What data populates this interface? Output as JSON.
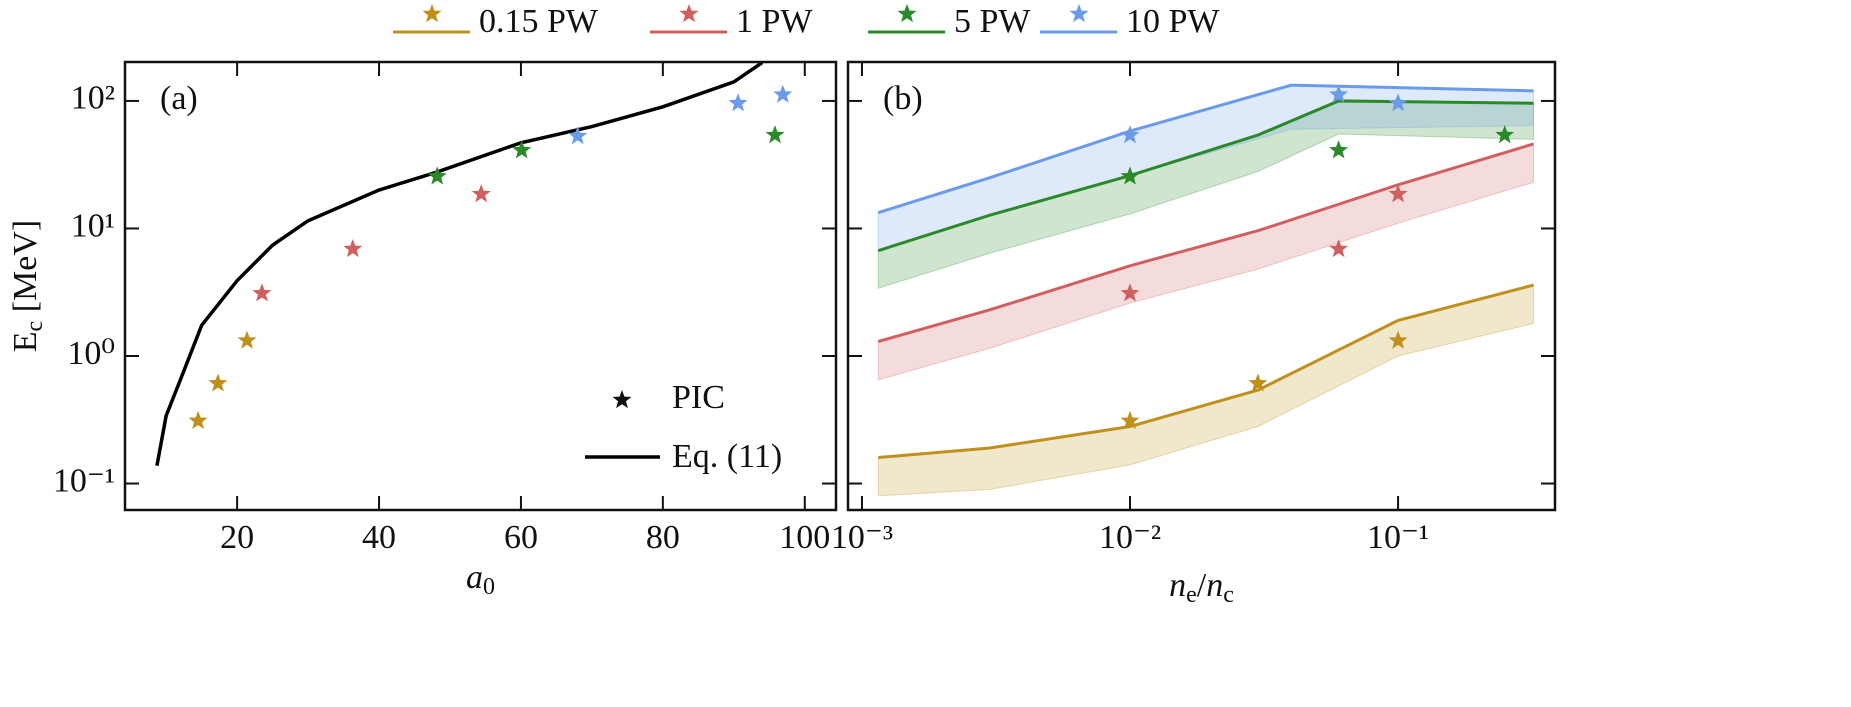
{
  "chart_data": [
    {
      "type": "scatter",
      "panel_label": "(a)",
      "x_label": [
        "a",
        "0"
      ],
      "y_label": [
        "E",
        "c",
        " [MeV]"
      ],
      "xlim": [
        4.2,
        104.4
      ],
      "ylim": [
        0.062,
        202
      ],
      "y_scale": "log",
      "xticks": [
        20,
        40,
        60,
        80,
        100
      ],
      "yticks": [
        {
          "value": 0.1,
          "label": "10⁻¹"
        },
        {
          "value": 1,
          "label": "10⁰"
        },
        {
          "value": 10,
          "label": "10¹"
        },
        {
          "value": 100,
          "label": "10²"
        }
      ],
      "series": [
        {
          "name": "0.15 PW",
          "color": "#c0901c",
          "x": [
            14.5,
            17.3,
            21.4
          ],
          "values": [
            0.31,
            0.61,
            1.32
          ]
        },
        {
          "name": "1 PW",
          "color": "#d06060",
          "x": [
            23.5,
            36.3,
            54.4
          ],
          "values": [
            3.1,
            6.9,
            18.6
          ]
        },
        {
          "name": "5 PW",
          "color": "#2a8a2a",
          "x": [
            48.2,
            60.1,
            95.8
          ],
          "values": [
            25.6,
            41,
            54
          ]
        },
        {
          "name": "10 PW",
          "color": "#6a9be8",
          "x": [
            68,
            90.6,
            96.9
          ],
          "values": [
            53,
            96,
            112
          ]
        }
      ],
      "marker_legend": "PIC",
      "curve": {
        "name": "Eq. (11)",
        "color": "#000000",
        "x": [
          8.7,
          10,
          12,
          15,
          20,
          25,
          30,
          40,
          48,
          60,
          70,
          80,
          90,
          94
        ],
        "values": [
          0.138,
          0.34,
          0.65,
          1.74,
          3.9,
          7.4,
          11.5,
          20,
          27.5,
          47,
          63,
          90,
          141,
          200
        ]
      }
    },
    {
      "type": "band",
      "panel_label": "(b)",
      "x_label": [
        "n",
        "e",
        "/",
        "n",
        "c"
      ],
      "xlim": [
        0.000887,
        0.385
      ],
      "ylim": [
        0.062,
        202
      ],
      "x_scale": "log",
      "y_scale": "log",
      "xticks": [
        {
          "value": 0.001,
          "label": "10⁻³"
        },
        {
          "value": 0.01,
          "label": "10⁻²"
        },
        {
          "value": 0.1,
          "label": "10⁻¹"
        }
      ],
      "yticks": [
        0.1,
        1,
        10,
        100
      ],
      "series": [
        {
          "color": "#c0901c",
          "x": [
            0.01,
            0.03,
            0.1
          ],
          "values": [
            0.31,
            0.61,
            1.32
          ],
          "line_x": [
            0.00115,
            0.003,
            0.01,
            0.03,
            0.1,
            0.32
          ],
          "line_values": [
            0.16,
            0.19,
            0.28,
            0.54,
            1.9,
            3.6
          ],
          "band_lower": [
            0.08,
            0.09,
            0.14,
            0.28,
            1.0,
            1.8
          ]
        },
        {
          "color": "#d06060",
          "x": [
            0.01,
            0.06,
            0.1
          ],
          "values": [
            3.1,
            6.9,
            18.6
          ],
          "line_x": [
            0.00115,
            0.003,
            0.01,
            0.03,
            0.1,
            0.32
          ],
          "line_values": [
            1.3,
            2.3,
            5.1,
            9.6,
            22,
            46
          ],
          "band_lower": [
            0.65,
            1.15,
            2.6,
            4.8,
            11,
            23
          ]
        },
        {
          "color": "#2a8a2a",
          "x": [
            0.01,
            0.06,
            0.25
          ],
          "values": [
            25.6,
            41,
            54
          ],
          "line_x": [
            0.00115,
            0.003,
            0.01,
            0.03,
            0.06,
            0.32
          ],
          "line_values": [
            6.7,
            12.7,
            26,
            54,
            100,
            96
          ],
          "band_lower": [
            3.4,
            6.4,
            13,
            28,
            55,
            50
          ]
        },
        {
          "color": "#6a9be8",
          "x": [
            0.01,
            0.06,
            0.1
          ],
          "values": [
            54,
            112,
            96
          ],
          "line_x": [
            0.00115,
            0.003,
            0.01,
            0.04,
            0.32
          ],
          "line_values": [
            13.3,
            25,
            58,
            133,
            120
          ],
          "band_lower": [
            6.7,
            12.7,
            26,
            60,
            64
          ]
        }
      ]
    }
  ]
}
